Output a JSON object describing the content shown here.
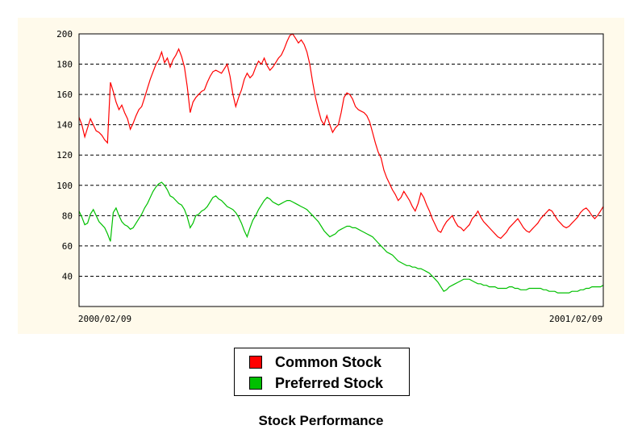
{
  "chart_data": {
    "type": "line",
    "title": "Stock Performance",
    "x_start_label": "2000/02/09",
    "x_end_label": "2001/02/09",
    "y_ticks": [
      40,
      60,
      80,
      100,
      120,
      140,
      160,
      180,
      200
    ],
    "ylim": [
      20,
      200
    ],
    "grid": "horizontal dashed",
    "legend_position": "bottom-center",
    "series": [
      {
        "name": "Common Stock",
        "color": "#ff0000",
        "values": [
          145,
          140,
          132,
          138,
          144,
          140,
          136,
          135,
          133,
          130,
          128,
          168,
          162,
          155,
          150,
          153,
          148,
          144,
          137,
          141,
          146,
          150,
          152,
          158,
          164,
          170,
          175,
          180,
          183,
          188,
          181,
          184,
          178,
          183,
          186,
          190,
          185,
          178,
          165,
          148,
          155,
          158,
          160,
          162,
          163,
          168,
          172,
          175,
          176,
          175,
          174,
          177,
          180,
          172,
          160,
          152,
          158,
          163,
          170,
          174,
          171,
          173,
          178,
          182,
          180,
          184,
          179,
          176,
          178,
          181,
          184,
          186,
          190,
          195,
          199,
          200,
          197,
          194,
          196,
          193,
          188,
          180,
          168,
          158,
          150,
          143,
          140,
          146,
          140,
          135,
          138,
          140,
          148,
          158,
          161,
          160,
          157,
          152,
          150,
          149,
          148,
          146,
          142,
          135,
          128,
          122,
          118,
          110,
          105,
          101,
          97,
          94,
          90,
          92,
          96,
          93,
          90,
          86,
          83,
          88,
          95,
          92,
          87,
          83,
          78,
          74,
          70,
          69,
          73,
          76,
          78,
          80,
          76,
          73,
          72,
          70,
          72,
          74,
          78,
          80,
          83,
          79,
          76,
          74,
          72,
          70,
          68,
          66,
          65,
          67,
          69,
          72,
          74,
          76,
          78,
          75,
          72,
          70,
          69,
          71,
          73,
          75,
          78,
          80,
          82,
          84,
          83,
          80,
          77,
          75,
          73,
          72,
          73,
          75,
          77,
          79,
          82,
          84,
          85,
          83,
          80,
          78,
          80,
          83,
          86
        ]
      },
      {
        "name": "Preferred Stock",
        "color": "#00c000",
        "values": [
          83,
          79,
          74,
          75,
          81,
          84,
          80,
          76,
          74,
          72,
          68,
          63,
          82,
          85,
          80,
          76,
          74,
          73,
          71,
          72,
          75,
          78,
          81,
          85,
          88,
          92,
          96,
          99,
          101,
          102,
          100,
          97,
          93,
          92,
          90,
          88,
          87,
          84,
          79,
          72,
          75,
          80,
          81,
          83,
          84,
          86,
          89,
          92,
          93,
          91,
          90,
          88,
          86,
          85,
          84,
          82,
          79,
          75,
          70,
          66,
          72,
          77,
          80,
          84,
          87,
          90,
          92,
          91,
          89,
          88,
          87,
          88,
          89,
          90,
          90,
          89,
          88,
          87,
          86,
          85,
          84,
          82,
          80,
          78,
          76,
          73,
          70,
          68,
          66,
          67,
          68,
          70,
          71,
          72,
          73,
          73,
          72,
          72,
          71,
          70,
          69,
          68,
          67,
          66,
          64,
          62,
          60,
          58,
          56,
          55,
          54,
          52,
          50,
          49,
          48,
          47,
          47,
          46,
          46,
          45,
          45,
          44,
          43,
          42,
          40,
          38,
          36,
          33,
          30,
          31,
          33,
          34,
          35,
          36,
          37,
          38,
          38,
          38,
          37,
          36,
          35,
          35,
          34,
          34,
          33,
          33,
          33,
          32,
          32,
          32,
          32,
          33,
          33,
          32,
          32,
          31,
          31,
          31,
          32,
          32,
          32,
          32,
          32,
          31,
          31,
          30,
          30,
          30,
          29,
          29,
          29,
          29,
          29,
          30,
          30,
          30,
          31,
          31,
          32,
          32,
          33,
          33,
          33,
          33,
          34
        ]
      }
    ]
  }
}
